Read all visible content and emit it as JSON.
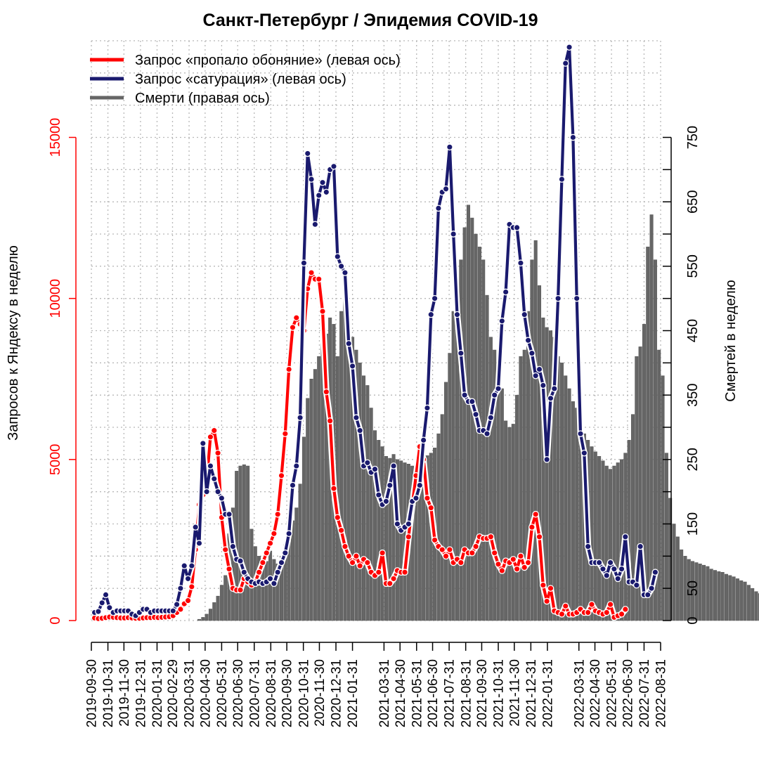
{
  "chart_data": {
    "type": "bar+line",
    "title": "Санкт-Петербург / Эпидемия COVID-19",
    "ylabel_left": "Запросов к Яндексу в неделю",
    "ylabel_right": "Смертей в неделю",
    "ylim_left": [
      0,
      18000
    ],
    "ylim_right": [
      0,
      900
    ],
    "yticks_left": [
      0,
      5000,
      10000,
      15000
    ],
    "yticks_right": [
      0,
      50,
      150,
      250,
      350,
      450,
      550,
      650,
      750
    ],
    "yticks_left_labels": [
      "0",
      "5000",
      "10000",
      "15000"
    ],
    "yticks_right_labels": [
      "0",
      "50",
      "150",
      "250",
      "350",
      "450",
      "550",
      "650",
      "750"
    ],
    "x_start": "2019-09-30",
    "x_end": "2022-08-31",
    "x_tick_labels": [
      "2019-09-30",
      "2019-10-31",
      "2019-11-30",
      "2019-12-31",
      "2020-01-31",
      "2020-02-29",
      "2020-03-31",
      "2020-04-30",
      "2020-05-31",
      "2020-06-30",
      "2020-07-31",
      "2020-08-31",
      "2020-09-30",
      "2020-10-31",
      "2020-11-30",
      "2020-12-31",
      "2021-01-31",
      "2021-03-31",
      "2021-04-30",
      "2021-05-31",
      "2021-06-30",
      "2021-07-31",
      "2021-08-31",
      "2021-09-30",
      "2021-10-31",
      "2021-11-30",
      "2021-12-31",
      "2022-01-31",
      "2022-03-31",
      "2022-04-30",
      "2022-05-31",
      "2022-06-30",
      "2022-07-31",
      "2022-08-31"
    ],
    "grid": true,
    "legend_position": "top-left",
    "colors": {
      "smell": "#ff0000",
      "saturation": "#1a1a6e",
      "deaths": "#666666"
    },
    "series": [
      {
        "name": "Запрос «пропало обоняние» (левая ось)",
        "axis": "left",
        "start": "2019-10-06",
        "step_days": 7,
        "values": [
          80,
          60,
          70,
          90,
          110,
          100,
          90,
          80,
          80,
          90,
          80,
          70,
          70,
          80,
          90,
          90,
          100,
          90,
          100,
          110,
          120,
          150,
          250,
          350,
          520,
          620,
          1050,
          2200,
          3600,
          3900,
          4300,
          5700,
          5900,
          5200,
          3200,
          2200,
          1600,
          1000,
          950,
          950,
          1300,
          1200,
          1100,
          1200,
          1500,
          1800,
          2100,
          2400,
          2700,
          3300,
          4500,
          5800,
          7800,
          9100,
          9400,
          9200,
          9000,
          10300,
          10800,
          10600,
          10600,
          9600,
          7100,
          6200,
          4100,
          3200,
          2800,
          2300,
          2000,
          1800,
          2000,
          1700,
          1900,
          1800,
          1500,
          1400,
          1500,
          2100,
          1150,
          1150,
          1300,
          1550,
          1500,
          1500,
          2600,
          3600,
          4500,
          5400,
          5000,
          3800,
          3500,
          2500,
          2300,
          2200,
          2000,
          2200,
          1800,
          1900,
          1800,
          2200,
          2100,
          2100,
          2300,
          2600,
          2550,
          2550,
          2600,
          2100,
          1750,
          1550,
          1850,
          1800,
          1900,
          1600,
          2000,
          1650,
          1800,
          2900,
          3300,
          2600,
          1100,
          600,
          1000,
          300,
          250,
          200,
          450,
          200,
          200,
          250,
          350,
          250,
          250,
          500,
          300,
          250,
          200,
          250,
          500,
          100,
          150,
          200,
          350
        ]
      },
      {
        "name": "Запрос «сатурация» (левая ось)",
        "axis": "left",
        "start": "2019-10-06",
        "step_days": 7,
        "values": [
          250,
          280,
          550,
          800,
          400,
          250,
          300,
          300,
          300,
          300,
          200,
          150,
          250,
          350,
          350,
          250,
          300,
          300,
          300,
          300,
          300,
          300,
          500,
          1000,
          1700,
          1300,
          1700,
          2900,
          2400,
          5500,
          4000,
          4800,
          4400,
          4000,
          3800,
          3300,
          3300,
          2300,
          1900,
          1850,
          1500,
          1300,
          1200,
          1150,
          1200,
          1150,
          1200,
          1300,
          1150,
          1500,
          1800,
          2100,
          2700,
          4200,
          4800,
          6300,
          11100,
          14500,
          13700,
          12300,
          13200,
          13600,
          13300,
          14000,
          14100,
          11300,
          11000,
          10800,
          8600,
          7900,
          6300,
          5900,
          4800,
          4900,
          4600,
          4700,
          3900,
          3600,
          3700,
          4200,
          4800,
          3000,
          2800,
          2900,
          3000,
          3700,
          3800,
          4200,
          5600,
          6600,
          9500,
          10000,
          12800,
          13300,
          13400,
          14700,
          12000,
          9500,
          8300,
          7000,
          6800,
          6800,
          6400,
          5900,
          5900,
          5800,
          6300,
          7000,
          7200,
          9300,
          10200,
          12300,
          12200,
          12200,
          11100,
          9500,
          8700,
          8300,
          7600,
          7800,
          7300,
          5000,
          6900,
          7200,
          10000,
          13700,
          17300,
          17800,
          15000,
          10000,
          5800,
          5200,
          2300,
          1800,
          1800,
          1800,
          1600,
          1400,
          1800,
          1600,
          1300,
          1600,
          2600,
          1200,
          1200,
          1100,
          2300,
          800,
          800,
          1000,
          1500
        ]
      },
      {
        "name": "Смерти (правая ось)",
        "axis": "right",
        "start": "2019-10-06",
        "step_days": 7,
        "values": [
          0,
          0,
          0,
          0,
          0,
          0,
          0,
          0,
          0,
          0,
          0,
          0,
          0,
          0,
          0,
          0,
          0,
          0,
          0,
          0,
          0,
          0,
          0,
          0,
          0,
          0,
          0,
          0,
          2,
          5,
          10,
          18,
          28,
          38,
          55,
          70,
          135,
          175,
          232,
          240,
          242,
          240,
          142,
          115,
          100,
          95,
          92,
          108,
          95,
          88,
          100,
          118,
          128,
          155,
          175,
          212,
          285,
          345,
          375,
          390,
          410,
          430,
          445,
          470,
          460,
          410,
          480,
          500,
          460,
          440,
          420,
          400,
          380,
          365,
          330,
          295,
          280,
          270,
          255,
          252,
          258,
          250,
          248,
          245,
          243,
          240,
          242,
          245,
          252,
          256,
          260,
          268,
          290,
          320,
          370,
          415,
          480,
          520,
          560,
          610,
          645,
          625,
          600,
          580,
          560,
          505,
          440,
          420,
          390,
          360,
          310,
          300,
          305,
          350,
          410,
          420,
          480,
          560,
          590,
          520,
          470,
          455,
          450,
          440,
          410,
          400,
          380,
          360,
          340,
          330,
          320,
          290,
          280,
          270,
          262,
          255,
          248,
          240,
          235,
          240,
          245,
          250,
          260,
          280,
          320,
          410,
          425,
          460,
          580,
          630,
          560,
          420,
          380,
          260,
          190,
          150,
          130,
          110,
          100,
          95,
          92,
          90,
          88,
          86,
          84,
          80,
          78,
          76,
          75,
          72,
          70,
          68,
          65,
          62,
          60,
          55,
          50,
          45,
          42,
          40
        ]
      }
    ]
  }
}
